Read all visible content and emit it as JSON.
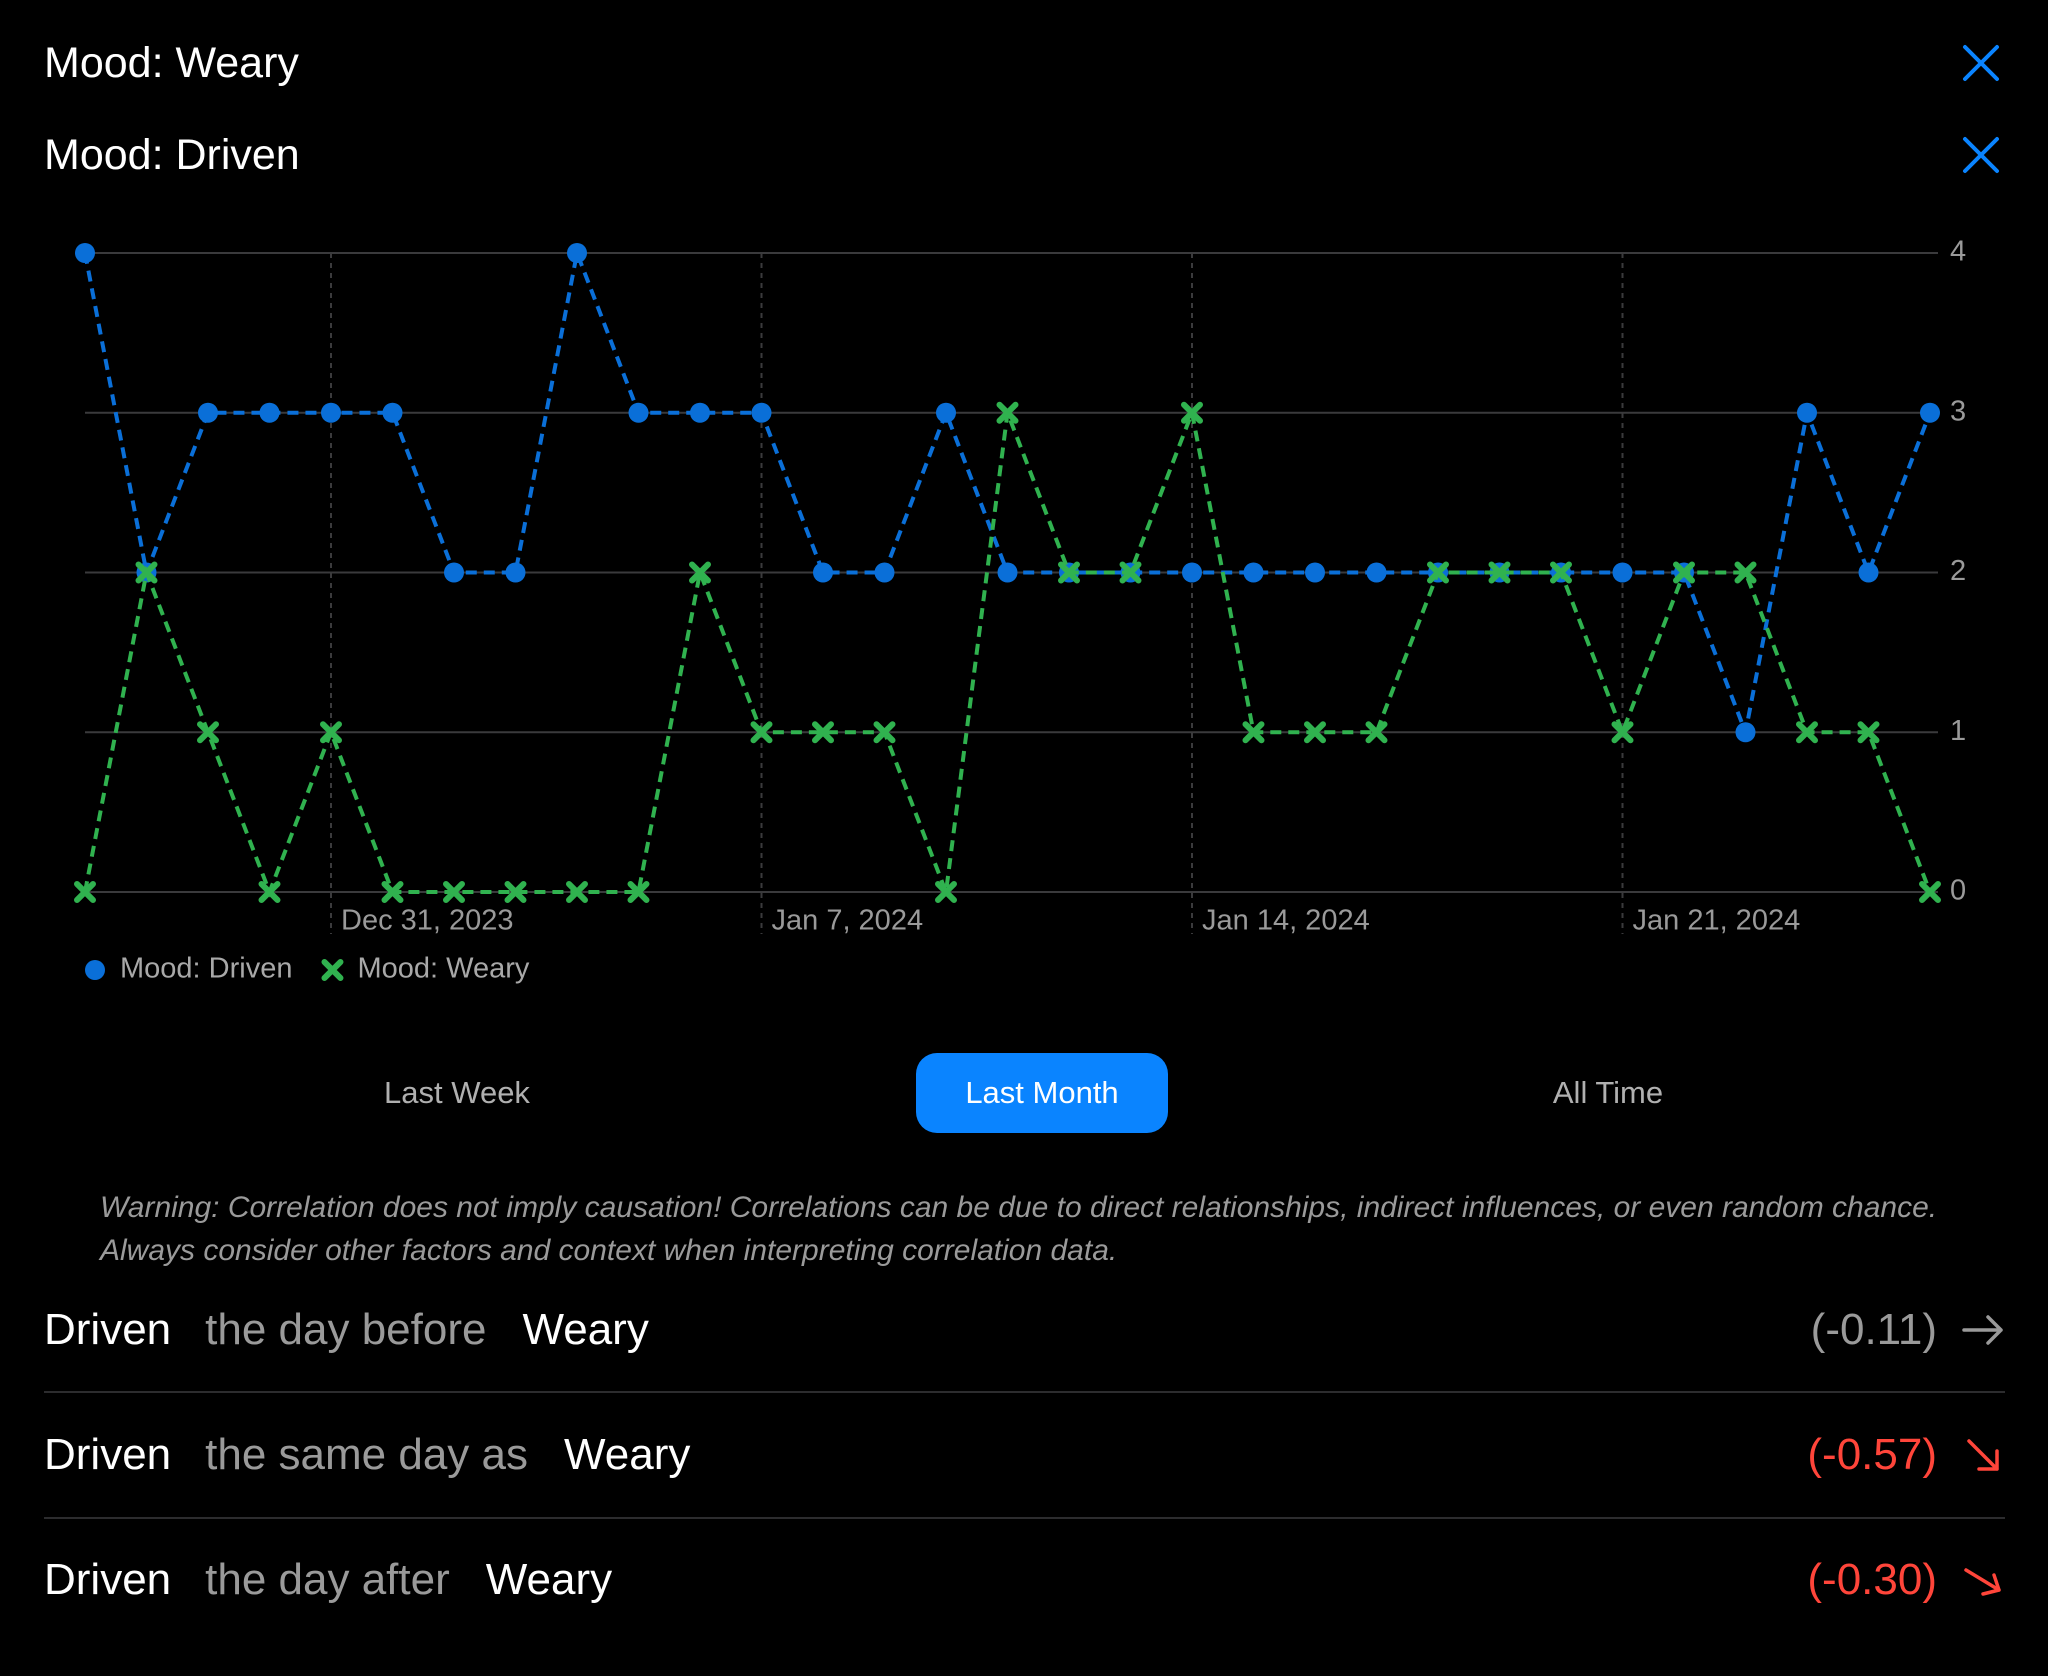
{
  "header": {
    "filters": [
      {
        "label": "Mood: Weary"
      },
      {
        "label": "Mood: Driven"
      }
    ]
  },
  "chart_data": {
    "type": "line",
    "x": [
      "2023-12-27",
      "2023-12-28",
      "2023-12-29",
      "2023-12-30",
      "2023-12-31",
      "2024-01-01",
      "2024-01-02",
      "2024-01-03",
      "2024-01-04",
      "2024-01-05",
      "2024-01-06",
      "2024-01-07",
      "2024-01-08",
      "2024-01-09",
      "2024-01-10",
      "2024-01-11",
      "2024-01-12",
      "2024-01-13",
      "2024-01-14",
      "2024-01-15",
      "2024-01-16",
      "2024-01-17",
      "2024-01-18",
      "2024-01-19",
      "2024-01-20",
      "2024-01-21",
      "2024-01-22",
      "2024-01-23",
      "2024-01-24",
      "2024-01-25",
      "2024-01-26"
    ],
    "xlim": [
      "2023-12-27",
      "2024-01-26"
    ],
    "xticks": [
      {
        "value": "2023-12-31",
        "label": "Dec 31, 2023"
      },
      {
        "value": "2024-01-07",
        "label": "Jan 7, 2024"
      },
      {
        "value": "2024-01-14",
        "label": "Jan 14, 2024"
      },
      {
        "value": "2024-01-21",
        "label": "Jan 21, 2024"
      }
    ],
    "ylim": [
      0,
      4
    ],
    "yticks": [
      0,
      1,
      2,
      3,
      4
    ],
    "grid": true,
    "series": [
      {
        "name": "Mood: Driven",
        "color": "#0a6fd8",
        "marker": "circle",
        "values": [
          4,
          2,
          3,
          3,
          3,
          3,
          2,
          2,
          4,
          3,
          3,
          3,
          2,
          2,
          3,
          2,
          2,
          2,
          2,
          2,
          2,
          2,
          2,
          2,
          2,
          2,
          2,
          1,
          3,
          2,
          3
        ]
      },
      {
        "name": "Mood: Weary",
        "color": "#30b24f",
        "marker": "x",
        "values": [
          0,
          2,
          1,
          0,
          1,
          0,
          0,
          0,
          0,
          0,
          2,
          1,
          1,
          1,
          0,
          3,
          2,
          2,
          3,
          1,
          1,
          1,
          2,
          2,
          2,
          1,
          2,
          2,
          1,
          1,
          0
        ]
      }
    ]
  },
  "range_selector": {
    "options": [
      "Last Week",
      "Last Month",
      "All Time"
    ],
    "selected": 1
  },
  "warning": "Warning: Correlation does not imply causation! Correlations can be due to direct relationships, indirect influences, or even random chance. Always consider other factors and context when interpreting correlation data.",
  "correlations": [
    {
      "subject": "Driven",
      "relation": "the day before",
      "object": "Weary",
      "value": "(-0.11)"
    },
    {
      "subject": "Driven",
      "relation": "the same day as",
      "object": "Weary",
      "value": "(-0.57)"
    },
    {
      "subject": "Driven",
      "relation": "the day after",
      "object": "Weary",
      "value": "(-0.30)"
    }
  ]
}
